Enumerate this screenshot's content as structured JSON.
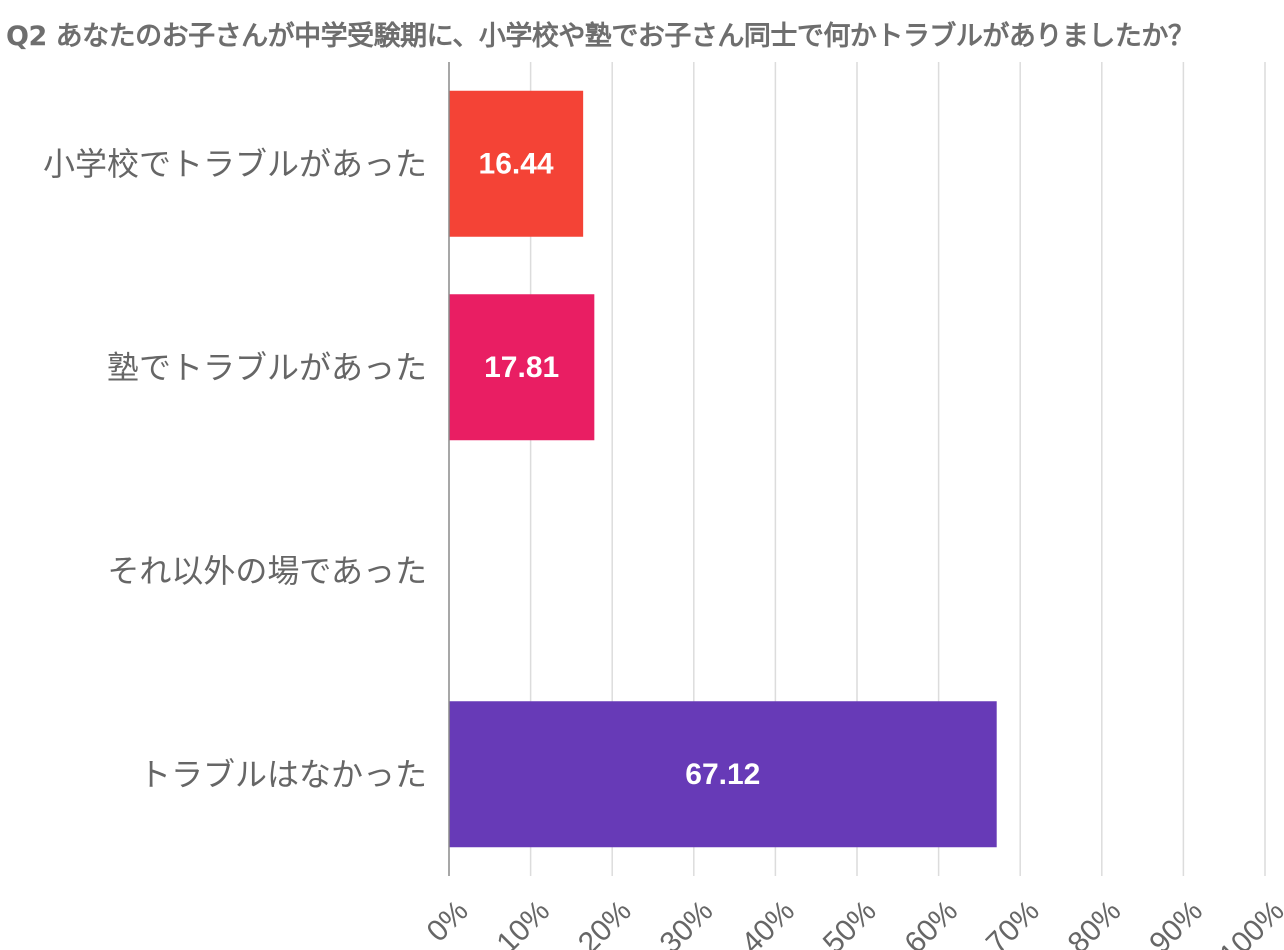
{
  "chart_data": {
    "type": "bar",
    "orientation": "horizontal",
    "title": "Q2 あなたのお子さんが中学受験期に、小学校や塾でお子さん同士で何かトラブルがありましたか？",
    "categories": [
      "小学校でトラブルがあった",
      "塾でトラブルがあった",
      "それ以外の場であった",
      "トラブルはなかった"
    ],
    "values": [
      16.44,
      17.81,
      0,
      67.12
    ],
    "value_labels": [
      "16.44",
      "17.81",
      "",
      "67.12"
    ],
    "colors": [
      "#f44336",
      "#e91e63",
      "#9c27b0",
      "#673ab7"
    ],
    "xlim": [
      0,
      100
    ],
    "xticks": [
      "0%",
      "10%",
      "20%",
      "30%",
      "40%",
      "50%",
      "60%",
      "70%",
      "80%",
      "90%",
      "100%"
    ],
    "grid": true,
    "xlabel": "",
    "ylabel": ""
  }
}
